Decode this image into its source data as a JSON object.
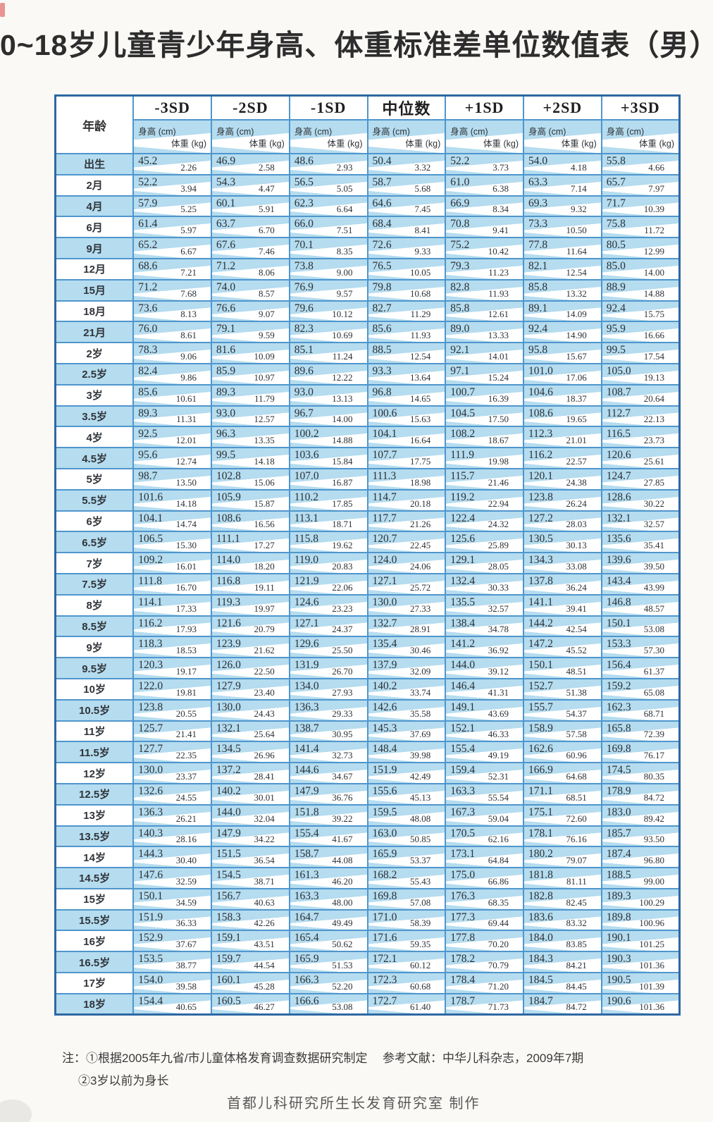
{
  "title": "0~18岁儿童青少年身高、体重标准差单位数值表（男）",
  "table": {
    "age_header": "年龄",
    "columns": [
      "-3SD",
      "-2SD",
      "-1SD",
      "中位数",
      "+1SD",
      "+2SD",
      "+3SD"
    ],
    "height_label": "身高 (cm)",
    "weight_label": "体重 (kg)",
    "rows": [
      [
        "出生",
        "45.2",
        "2.26",
        "46.9",
        "2.58",
        "48.6",
        "2.93",
        "50.4",
        "3.32",
        "52.2",
        "3.73",
        "54.0",
        "4.18",
        "55.8",
        "4.66"
      ],
      [
        "2月",
        "52.2",
        "3.94",
        "54.3",
        "4.47",
        "56.5",
        "5.05",
        "58.7",
        "5.68",
        "61.0",
        "6.38",
        "63.3",
        "7.14",
        "65.7",
        "7.97"
      ],
      [
        "4月",
        "57.9",
        "5.25",
        "60.1",
        "5.91",
        "62.3",
        "6.64",
        "64.6",
        "7.45",
        "66.9",
        "8.34",
        "69.3",
        "9.32",
        "71.7",
        "10.39"
      ],
      [
        "6月",
        "61.4",
        "5.97",
        "63.7",
        "6.70",
        "66.0",
        "7.51",
        "68.4",
        "8.41",
        "70.8",
        "9.41",
        "73.3",
        "10.50",
        "75.8",
        "11.72"
      ],
      [
        "9月",
        "65.2",
        "6.67",
        "67.6",
        "7.46",
        "70.1",
        "8.35",
        "72.6",
        "9.33",
        "75.2",
        "10.42",
        "77.8",
        "11.64",
        "80.5",
        "12.99"
      ],
      [
        "12月",
        "68.6",
        "7.21",
        "71.2",
        "8.06",
        "73.8",
        "9.00",
        "76.5",
        "10.05",
        "79.3",
        "11.23",
        "82.1",
        "12.54",
        "85.0",
        "14.00"
      ],
      [
        "15月",
        "71.2",
        "7.68",
        "74.0",
        "8.57",
        "76.9",
        "9.57",
        "79.8",
        "10.68",
        "82.8",
        "11.93",
        "85.8",
        "13.32",
        "88.9",
        "14.88"
      ],
      [
        "18月",
        "73.6",
        "8.13",
        "76.6",
        "9.07",
        "79.6",
        "10.12",
        "82.7",
        "11.29",
        "85.8",
        "12.61",
        "89.1",
        "14.09",
        "92.4",
        "15.75"
      ],
      [
        "21月",
        "76.0",
        "8.61",
        "79.1",
        "9.59",
        "82.3",
        "10.69",
        "85.6",
        "11.93",
        "89.0",
        "13.33",
        "92.4",
        "14.90",
        "95.9",
        "16.66"
      ],
      [
        "2岁",
        "78.3",
        "9.06",
        "81.6",
        "10.09",
        "85.1",
        "11.24",
        "88.5",
        "12.54",
        "92.1",
        "14.01",
        "95.8",
        "15.67",
        "99.5",
        "17.54"
      ],
      [
        "2.5岁",
        "82.4",
        "9.86",
        "85.9",
        "10.97",
        "89.6",
        "12.22",
        "93.3",
        "13.64",
        "97.1",
        "15.24",
        "101.0",
        "17.06",
        "105.0",
        "19.13"
      ],
      [
        "3岁",
        "85.6",
        "10.61",
        "89.3",
        "11.79",
        "93.0",
        "13.13",
        "96.8",
        "14.65",
        "100.7",
        "16.39",
        "104.6",
        "18.37",
        "108.7",
        "20.64"
      ],
      [
        "3.5岁",
        "89.3",
        "11.31",
        "93.0",
        "12.57",
        "96.7",
        "14.00",
        "100.6",
        "15.63",
        "104.5",
        "17.50",
        "108.6",
        "19.65",
        "112.7",
        "22.13"
      ],
      [
        "4岁",
        "92.5",
        "12.01",
        "96.3",
        "13.35",
        "100.2",
        "14.88",
        "104.1",
        "16.64",
        "108.2",
        "18.67",
        "112.3",
        "21.01",
        "116.5",
        "23.73"
      ],
      [
        "4.5岁",
        "95.6",
        "12.74",
        "99.5",
        "14.18",
        "103.6",
        "15.84",
        "107.7",
        "17.75",
        "111.9",
        "19.98",
        "116.2",
        "22.57",
        "120.6",
        "25.61"
      ],
      [
        "5岁",
        "98.7",
        "13.50",
        "102.8",
        "15.06",
        "107.0",
        "16.87",
        "111.3",
        "18.98",
        "115.7",
        "21.46",
        "120.1",
        "24.38",
        "124.7",
        "27.85"
      ],
      [
        "5.5岁",
        "101.6",
        "14.18",
        "105.9",
        "15.87",
        "110.2",
        "17.85",
        "114.7",
        "20.18",
        "119.2",
        "22.94",
        "123.8",
        "26.24",
        "128.6",
        "30.22"
      ],
      [
        "6岁",
        "104.1",
        "14.74",
        "108.6",
        "16.56",
        "113.1",
        "18.71",
        "117.7",
        "21.26",
        "122.4",
        "24.32",
        "127.2",
        "28.03",
        "132.1",
        "32.57"
      ],
      [
        "6.5岁",
        "106.5",
        "15.30",
        "111.1",
        "17.27",
        "115.8",
        "19.62",
        "120.7",
        "22.45",
        "125.6",
        "25.89",
        "130.5",
        "30.13",
        "135.6",
        "35.41"
      ],
      [
        "7岁",
        "109.2",
        "16.01",
        "114.0",
        "18.20",
        "119.0",
        "20.83",
        "124.0",
        "24.06",
        "129.1",
        "28.05",
        "134.3",
        "33.08",
        "139.6",
        "39.50"
      ],
      [
        "7.5岁",
        "111.8",
        "16.70",
        "116.8",
        "19.11",
        "121.9",
        "22.06",
        "127.1",
        "25.72",
        "132.4",
        "30.33",
        "137.8",
        "36.24",
        "143.4",
        "43.99"
      ],
      [
        "8岁",
        "114.1",
        "17.33",
        "119.3",
        "19.97",
        "124.6",
        "23.23",
        "130.0",
        "27.33",
        "135.5",
        "32.57",
        "141.1",
        "39.41",
        "146.8",
        "48.57"
      ],
      [
        "8.5岁",
        "116.2",
        "17.93",
        "121.6",
        "20.79",
        "127.1",
        "24.37",
        "132.7",
        "28.91",
        "138.4",
        "34.78",
        "144.2",
        "42.54",
        "150.1",
        "53.08"
      ],
      [
        "9岁",
        "118.3",
        "18.53",
        "123.9",
        "21.62",
        "129.6",
        "25.50",
        "135.4",
        "30.46",
        "141.2",
        "36.92",
        "147.2",
        "45.52",
        "153.3",
        "57.30"
      ],
      [
        "9.5岁",
        "120.3",
        "19.17",
        "126.0",
        "22.50",
        "131.9",
        "26.70",
        "137.9",
        "32.09",
        "144.0",
        "39.12",
        "150.1",
        "48.51",
        "156.4",
        "61.37"
      ],
      [
        "10岁",
        "122.0",
        "19.81",
        "127.9",
        "23.40",
        "134.0",
        "27.93",
        "140.2",
        "33.74",
        "146.4",
        "41.31",
        "152.7",
        "51.38",
        "159.2",
        "65.08"
      ],
      [
        "10.5岁",
        "123.8",
        "20.55",
        "130.0",
        "24.43",
        "136.3",
        "29.33",
        "142.6",
        "35.58",
        "149.1",
        "43.69",
        "155.7",
        "54.37",
        "162.3",
        "68.71"
      ],
      [
        "11岁",
        "125.7",
        "21.41",
        "132.1",
        "25.64",
        "138.7",
        "30.95",
        "145.3",
        "37.69",
        "152.1",
        "46.33",
        "158.9",
        "57.58",
        "165.8",
        "72.39"
      ],
      [
        "11.5岁",
        "127.7",
        "22.35",
        "134.5",
        "26.96",
        "141.4",
        "32.73",
        "148.4",
        "39.98",
        "155.4",
        "49.19",
        "162.6",
        "60.96",
        "169.8",
        "76.17"
      ],
      [
        "12岁",
        "130.0",
        "23.37",
        "137.2",
        "28.41",
        "144.6",
        "34.67",
        "151.9",
        "42.49",
        "159.4",
        "52.31",
        "166.9",
        "64.68",
        "174.5",
        "80.35"
      ],
      [
        "12.5岁",
        "132.6",
        "24.55",
        "140.2",
        "30.01",
        "147.9",
        "36.76",
        "155.6",
        "45.13",
        "163.3",
        "55.54",
        "171.1",
        "68.51",
        "178.9",
        "84.72"
      ],
      [
        "13岁",
        "136.3",
        "26.21",
        "144.0",
        "32.04",
        "151.8",
        "39.22",
        "159.5",
        "48.08",
        "167.3",
        "59.04",
        "175.1",
        "72.60",
        "183.0",
        "89.42"
      ],
      [
        "13.5岁",
        "140.3",
        "28.16",
        "147.9",
        "34.22",
        "155.4",
        "41.67",
        "163.0",
        "50.85",
        "170.5",
        "62.16",
        "178.1",
        "76.16",
        "185.7",
        "93.50"
      ],
      [
        "14岁",
        "144.3",
        "30.40",
        "151.5",
        "36.54",
        "158.7",
        "44.08",
        "165.9",
        "53.37",
        "173.1",
        "64.84",
        "180.2",
        "79.07",
        "187.4",
        "96.80"
      ],
      [
        "14.5岁",
        "147.6",
        "32.59",
        "154.5",
        "38.71",
        "161.3",
        "46.20",
        "168.2",
        "55.43",
        "175.0",
        "66.86",
        "181.8",
        "81.11",
        "188.5",
        "99.00"
      ],
      [
        "15岁",
        "150.1",
        "34.59",
        "156.7",
        "40.63",
        "163.3",
        "48.00",
        "169.8",
        "57.08",
        "176.3",
        "68.35",
        "182.8",
        "82.45",
        "189.3",
        "100.29"
      ],
      [
        "15.5岁",
        "151.9",
        "36.33",
        "158.3",
        "42.26",
        "164.7",
        "49.49",
        "171.0",
        "58.39",
        "177.3",
        "69.44",
        "183.6",
        "83.32",
        "189.8",
        "100.96"
      ],
      [
        "16岁",
        "152.9",
        "37.67",
        "159.1",
        "43.51",
        "165.4",
        "50.62",
        "171.6",
        "59.35",
        "177.8",
        "70.20",
        "184.0",
        "83.85",
        "190.1",
        "101.25"
      ],
      [
        "16.5岁",
        "153.5",
        "38.77",
        "159.7",
        "44.54",
        "165.9",
        "51.53",
        "172.1",
        "60.12",
        "178.2",
        "70.79",
        "184.3",
        "84.21",
        "190.3",
        "101.36"
      ],
      [
        "17岁",
        "154.0",
        "39.58",
        "160.1",
        "45.28",
        "166.3",
        "52.20",
        "172.3",
        "60.68",
        "178.4",
        "71.20",
        "184.5",
        "84.45",
        "190.5",
        "101.39"
      ],
      [
        "18岁",
        "154.4",
        "40.65",
        "160.5",
        "46.27",
        "166.6",
        "53.08",
        "172.7",
        "61.40",
        "178.7",
        "71.73",
        "184.7",
        "84.72",
        "190.6",
        "101.36"
      ]
    ]
  },
  "notes": {
    "line1": "注：①根据2005年九省/市儿童体格发育调查数据研究制定",
    "reference": "参考文献：中华儿科杂志，2009年7期",
    "line2": "②3岁以前为身长",
    "producer": "首都儿科研究所生长发育研究室  制作"
  },
  "colors": {
    "cell_blue": "#b5dcef",
    "grid_blue": "#4f96cd",
    "outer_border_blue": "#2e68a2"
  }
}
